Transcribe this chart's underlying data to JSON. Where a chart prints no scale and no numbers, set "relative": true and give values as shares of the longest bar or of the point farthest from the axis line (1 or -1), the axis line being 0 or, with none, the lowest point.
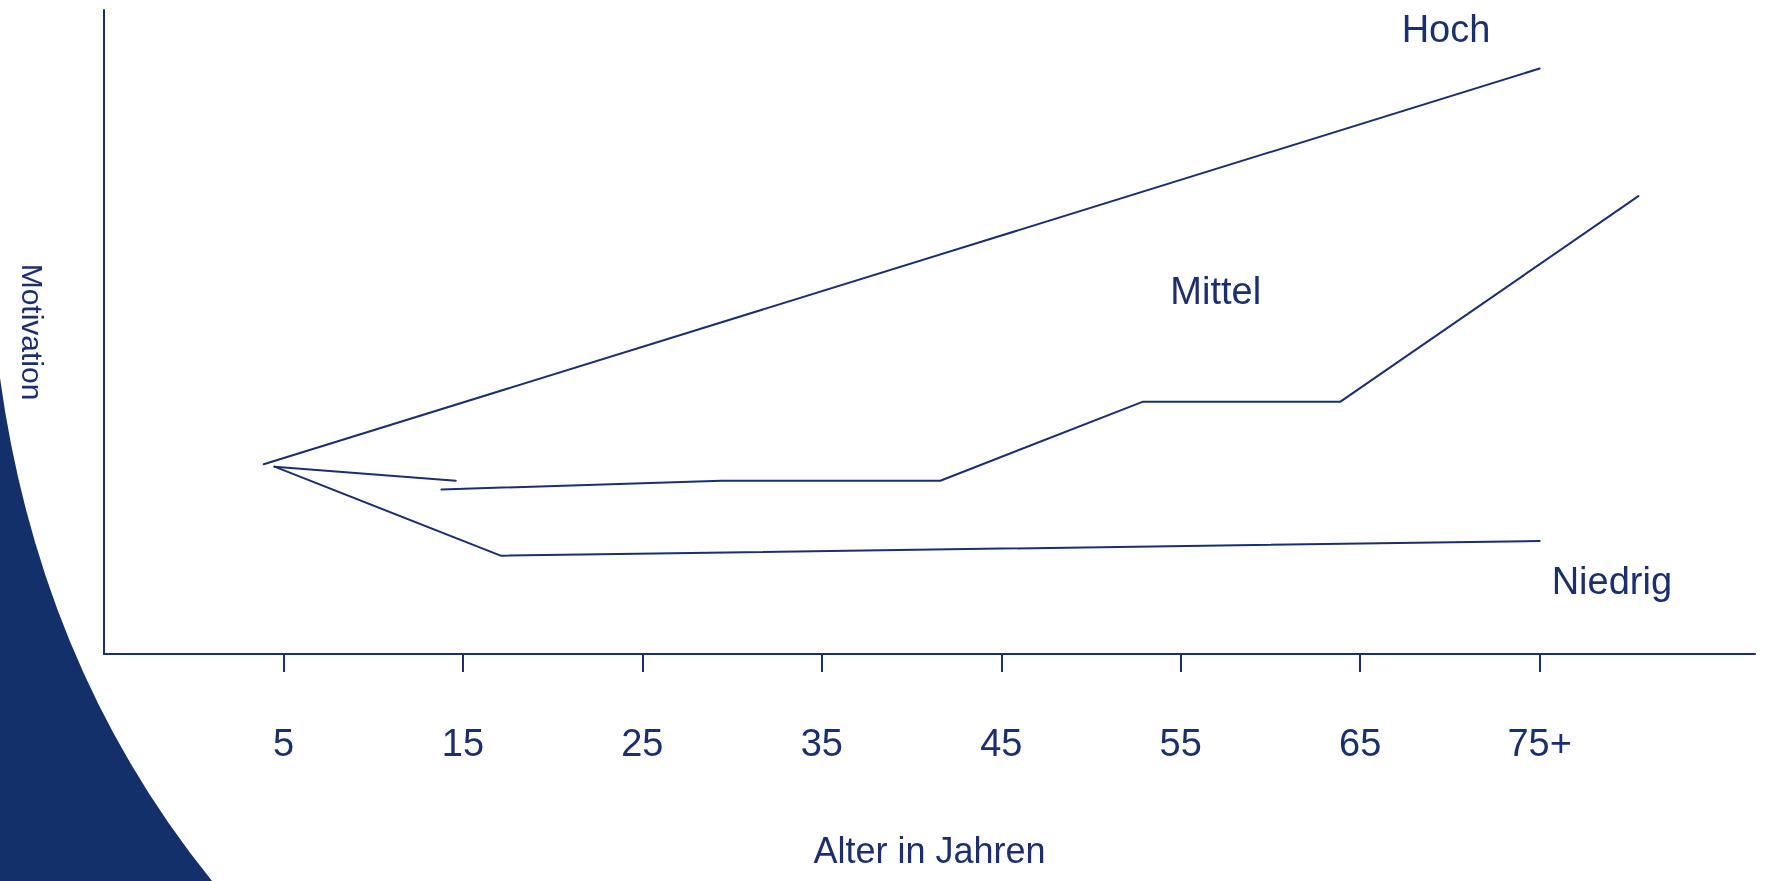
{
  "chart_data": {
    "type": "line",
    "relative": true,
    "xlabel": "Alter in Jahren",
    "ylabel": "Motivation",
    "xlim": [
      -5,
      87
    ],
    "xticks": [
      5,
      15,
      25,
      35,
      45,
      55,
      65,
      {
        "value": 75,
        "label": "75+"
      }
    ],
    "grid": false,
    "legend": false,
    "marker": "none",
    "line_style": "solid",
    "tick_labels": "x",
    "series": [
      {
        "name": "Hoch",
        "color": "#1b2f6e",
        "x": [
          3.9,
          75
        ],
        "values": [
          0.324,
          1
        ]
      },
      {
        "name": "Mittel",
        "color": "#1b2f6e",
        "x": [
          4.5,
          14.6,
          14.2,
          13.8,
          29.4,
          41.6,
          52.9,
          63.9,
          80.5
        ],
        "values": [
          0.32,
          0.296,
          null,
          0.281,
          0.296,
          0.296,
          0.431,
          0.431,
          0.782
        ]
      },
      {
        "name": "Niedrig",
        "color": "#1b2f6e",
        "x": [
          4.5,
          17.1,
          75
        ],
        "values": [
          0.32,
          0.168,
          0.193
        ]
      }
    ]
  }
}
